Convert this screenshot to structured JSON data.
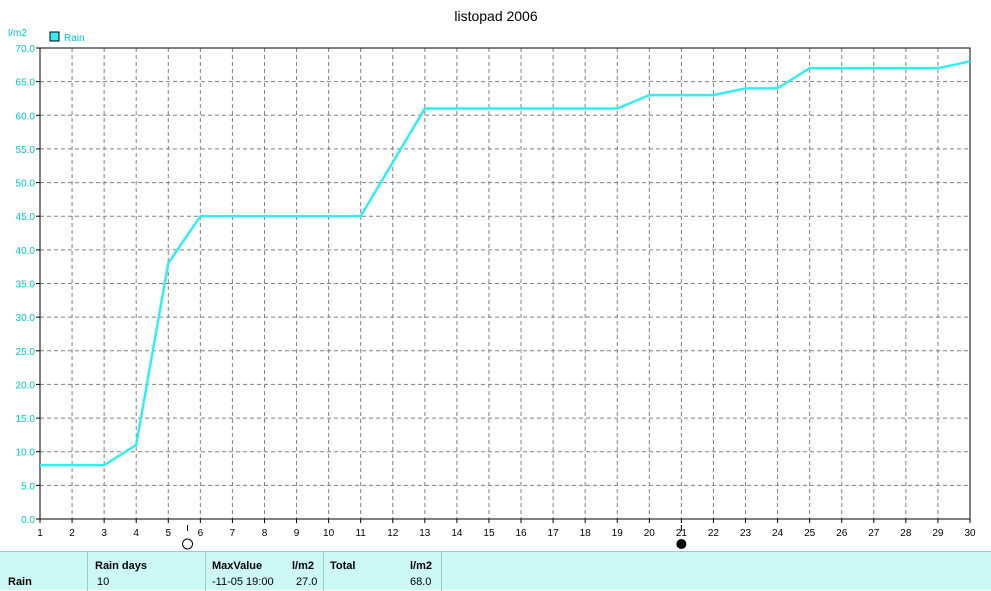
{
  "chart_data": {
    "type": "line",
    "title": "listopad 2006",
    "ylabel": "l/m2",
    "xlabel": "",
    "ylim": [
      0,
      70
    ],
    "y_ticks": [
      "0.0",
      "5.0",
      "10.0",
      "15.0",
      "20.0",
      "25.0",
      "30.0",
      "35.0",
      "40.0",
      "45.0",
      "50.0",
      "55.0",
      "60.0",
      "65.0",
      "70.0"
    ],
    "x_ticks": [
      "1",
      "2",
      "3",
      "4",
      "5",
      "6",
      "7",
      "8",
      "9",
      "10",
      "11",
      "12",
      "13",
      "14",
      "15",
      "16",
      "17",
      "18",
      "19",
      "20",
      "21",
      "22",
      "23",
      "24",
      "25",
      "26",
      "27",
      "28",
      "29",
      "30"
    ],
    "xlim": [
      1,
      30
    ],
    "grid": true,
    "legend_position": "top-left",
    "series": [
      {
        "name": "Rain",
        "color": "#33eef0",
        "x": [
          1,
          3,
          4,
          5,
          6,
          11,
          13,
          19,
          20,
          22,
          23,
          24,
          25,
          29,
          30
        ],
        "y": [
          8,
          8,
          11,
          38,
          45,
          45,
          61,
          61,
          63,
          63,
          64,
          64,
          67,
          67,
          68
        ]
      }
    ],
    "moon_phases": [
      {
        "x": 5.6,
        "phase": "full-moon-icon"
      },
      {
        "x": 21,
        "phase": "new-moon-icon"
      }
    ]
  },
  "summary": {
    "row_label": "Rain",
    "rain_days_header": "Rain days",
    "rain_days_value": "10",
    "max_header": "MaxValue",
    "max_unit": "l/m2",
    "max_date": "-11-05  19:00",
    "max_value": "27.0",
    "total_header": "Total",
    "total_unit": "l/m2",
    "total_value": "68.0"
  }
}
